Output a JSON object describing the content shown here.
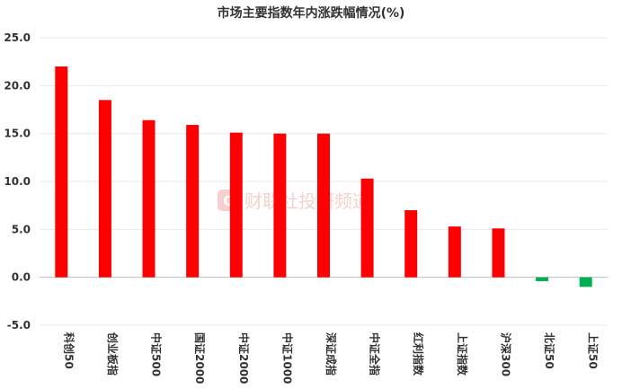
{
  "chart_data": {
    "type": "bar",
    "title": "市场主要指数年内涨跌幅情况(%)",
    "xlabel": "",
    "ylabel": "",
    "ylim": [
      -5.0,
      25.0
    ],
    "yticks": [
      "25.0",
      "20.0",
      "15.0",
      "10.0",
      "5.0",
      "0.0",
      "-5.0"
    ],
    "ytick_values": [
      25,
      20,
      15,
      10,
      5,
      0,
      -5
    ],
    "categories": [
      "科创50",
      "创业板指",
      "中证500",
      "国证2000",
      "中证2000",
      "中证1000",
      "深证成指",
      "中证全指",
      "红利指数",
      "上证指数",
      "沪深300",
      "北证50",
      "上证50"
    ],
    "values": [
      22.0,
      18.5,
      16.4,
      15.9,
      15.1,
      15.0,
      15.0,
      10.3,
      7.0,
      5.3,
      5.1,
      -0.4,
      -1.0
    ],
    "positive_color": "#ff0000",
    "negative_color": "#00b050",
    "grid": true,
    "legend": "none"
  },
  "watermark": {
    "text": "财联社投研频道",
    "icon": "cls-logo-icon",
    "color": "#f3cccc"
  }
}
